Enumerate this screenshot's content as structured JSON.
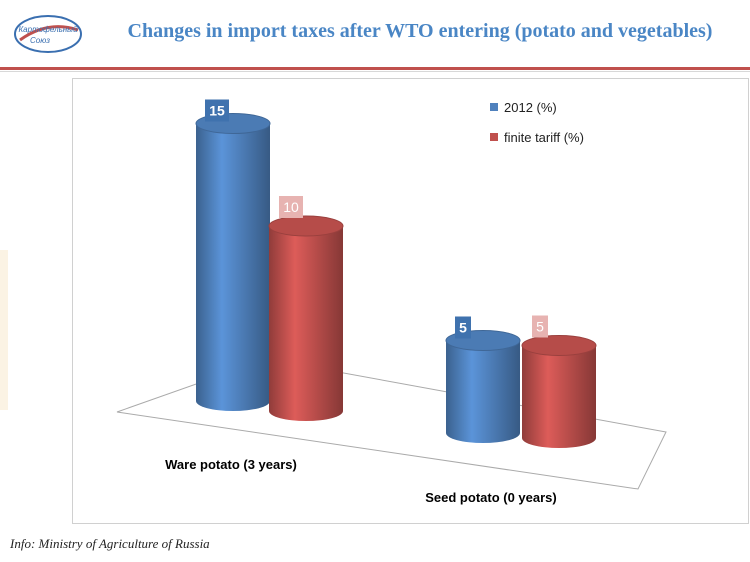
{
  "header": {
    "title": "Changes in import taxes after WTO entering (potato and vegetables)",
    "logo_text_1": "Картофельный",
    "logo_text_2": "Союз"
  },
  "footer": {
    "source": "Info: Ministry of Agriculture of Russia"
  },
  "colors": {
    "series_2012": "#4f81bd",
    "series_finite": "#c0504d",
    "title": "#4a86c5",
    "accent_rule": "#c0504d"
  },
  "chart_data": {
    "type": "bar",
    "style": "3d-cylinder",
    "categories": [
      "Ware potato (3 years)",
      "Seed potato (0 years)"
    ],
    "series": [
      {
        "name": "2012 (%)",
        "values": [
          15,
          5
        ],
        "color": "#4f81bd"
      },
      {
        "name": "finite tariff (%)",
        "values": [
          10,
          5
        ],
        "color": "#c0504d"
      }
    ],
    "data_labels": true,
    "legend": "top-right",
    "grid": false
  }
}
